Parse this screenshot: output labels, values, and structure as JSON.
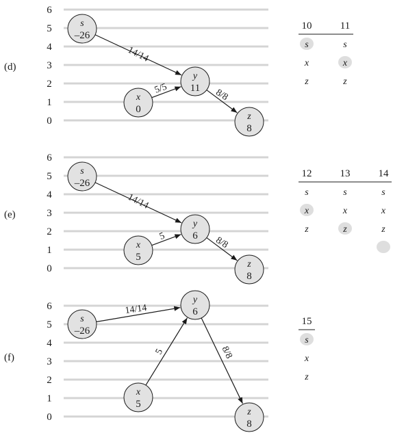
{
  "panels": [
    {
      "label": "(d)",
      "levels": [
        "0",
        "1",
        "2",
        "3",
        "4",
        "5",
        "6"
      ],
      "nodes": [
        {
          "id": "s",
          "name": "s",
          "value": "–26"
        },
        {
          "id": "x",
          "name": "x",
          "value": "0"
        },
        {
          "id": "y",
          "name": "y",
          "value": "11"
        },
        {
          "id": "z",
          "name": "z",
          "value": "8"
        }
      ],
      "edges": [
        {
          "from": "s",
          "to": "y",
          "label": "14/14"
        },
        {
          "from": "x",
          "to": "y",
          "label": "5/5"
        },
        {
          "from": "y",
          "to": "z",
          "label": "8/8"
        }
      ],
      "table": {
        "headers": [
          "10",
          "11"
        ],
        "rows": [
          [
            "s",
            "s"
          ],
          [
            "x",
            "x"
          ],
          [
            "z",
            "z"
          ]
        ],
        "highlighted": [
          [
            0,
            0
          ],
          [
            1,
            1
          ]
        ],
        "extra_dot": false
      }
    },
    {
      "label": "(e)",
      "levels": [
        "0",
        "1",
        "2",
        "3",
        "4",
        "5",
        "6"
      ],
      "nodes": [
        {
          "id": "s",
          "name": "s",
          "value": "–26"
        },
        {
          "id": "x",
          "name": "x",
          "value": "5"
        },
        {
          "id": "y",
          "name": "y",
          "value": "6"
        },
        {
          "id": "z",
          "name": "z",
          "value": "8"
        }
      ],
      "edges": [
        {
          "from": "s",
          "to": "y",
          "label": "14/14"
        },
        {
          "from": "x",
          "to": "y",
          "label": "5"
        },
        {
          "from": "y",
          "to": "z",
          "label": "8/8"
        }
      ],
      "table": {
        "headers": [
          "12",
          "13",
          "14"
        ],
        "rows": [
          [
            "s",
            "s",
            "s"
          ],
          [
            "x",
            "x",
            "x"
          ],
          [
            "z",
            "z",
            "z"
          ]
        ],
        "highlighted": [
          [
            1,
            0
          ],
          [
            2,
            1
          ]
        ],
        "extra_dot": true
      }
    },
    {
      "label": "(f)",
      "levels": [
        "0",
        "1",
        "2",
        "3",
        "4",
        "5",
        "6"
      ],
      "nodes": [
        {
          "id": "s",
          "name": "s",
          "value": "–26"
        },
        {
          "id": "x",
          "name": "x",
          "value": "5"
        },
        {
          "id": "y",
          "name": "y",
          "value": "6"
        },
        {
          "id": "z",
          "name": "z",
          "value": "8"
        }
      ],
      "edges": [
        {
          "from": "s",
          "to": "y",
          "label": "14/14"
        },
        {
          "from": "x",
          "to": "y",
          "label": "5"
        },
        {
          "from": "y",
          "to": "z",
          "label": "8/8"
        }
      ],
      "table": {
        "headers": [
          "15"
        ],
        "rows": [
          [
            "s"
          ],
          [
            "x"
          ],
          [
            "z"
          ]
        ],
        "highlighted": [
          [
            0,
            0
          ]
        ],
        "extra_dot": false
      }
    }
  ]
}
